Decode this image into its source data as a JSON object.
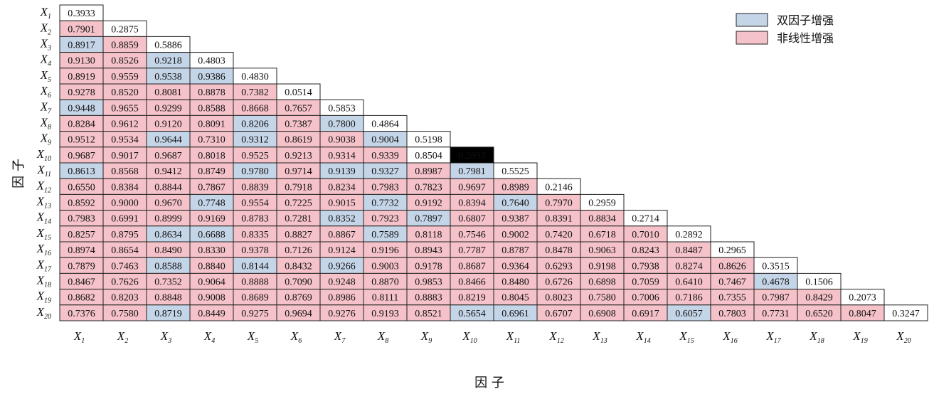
{
  "chart_data": {
    "type": "heatmap",
    "factors": [
      "X_1",
      "X_2",
      "X_3",
      "X_4",
      "X_5",
      "X_6",
      "X_7",
      "X_8",
      "X_9",
      "X_10",
      "X_11",
      "X_12",
      "X_13",
      "X_14",
      "X_15",
      "X_16",
      "X_17",
      "X_18",
      "X_19",
      "X_20"
    ],
    "xlabel": "因 子",
    "ylabel": "因 子",
    "legend": [
      {
        "key": "B",
        "label": "双因子增强",
        "color": "#c5d5e8"
      },
      {
        "key": "N",
        "label": "非线性增强",
        "color": "#f4c2c8"
      }
    ],
    "diagonal_color": "#ffffff",
    "values": [
      [
        "0.3933"
      ],
      [
        "0.7901",
        "0.2875"
      ],
      [
        "0.8917",
        "0.8859",
        "0.5886"
      ],
      [
        "0.9130",
        "0.8526",
        "0.9218",
        "0.4803"
      ],
      [
        "0.8919",
        "0.9559",
        "0.9538",
        "0.9386",
        "0.4830"
      ],
      [
        "0.9278",
        "0.8520",
        "0.8081",
        "0.8878",
        "0.7382",
        "0.0514"
      ],
      [
        "0.9448",
        "0.9655",
        "0.9299",
        "0.8588",
        "0.8668",
        "0.7657",
        "0.5853"
      ],
      [
        "0.8284",
        "0.9612",
        "0.9120",
        "0.8091",
        "0.8206",
        "0.7387",
        "0.7800",
        "0.4864"
      ],
      [
        "0.9512",
        "0.9534",
        "0.9644",
        "0.7310",
        "0.9312",
        "0.8619",
        "0.9038",
        "0.9004",
        "0.5198"
      ],
      [
        "0.9687",
        "0.9017",
        "0.9687",
        "0.8018",
        "0.9525",
        "0.9213",
        "0.9314",
        "0.9339",
        "0.8504",
        "0.2893"
      ],
      [
        "0.8613",
        "0.8568",
        "0.9412",
        "0.8749",
        "0.9780",
        "0.9714",
        "0.9139",
        "0.9327",
        "0.8987",
        "0.7981",
        "0.5525"
      ],
      [
        "0.6550",
        "0.8384",
        "0.8844",
        "0.7867",
        "0.8839",
        "0.7918",
        "0.8234",
        "0.7983",
        "0.7823",
        "0.9697",
        "0.8989",
        "0.2146"
      ],
      [
        "0.8592",
        "0.9000",
        "0.9670",
        "0.7748",
        "0.9554",
        "0.7225",
        "0.9015",
        "0.7732",
        "0.9192",
        "0.8394",
        "0.7640",
        "0.7970",
        "0.2959"
      ],
      [
        "0.7983",
        "0.6991",
        "0.8999",
        "0.9169",
        "0.8783",
        "0.7281",
        "0.8352",
        "0.7923",
        "0.7897",
        "0.6807",
        "0.9387",
        "0.8391",
        "0.8834",
        "0.2714"
      ],
      [
        "0.8257",
        "0.8795",
        "0.8634",
        "0.6688",
        "0.8335",
        "0.8827",
        "0.8867",
        "0.7589",
        "0.8118",
        "0.7546",
        "0.9002",
        "0.7420",
        "0.6718",
        "0.7010",
        "0.2892"
      ],
      [
        "0.8974",
        "0.8654",
        "0.8490",
        "0.8330",
        "0.9378",
        "0.7126",
        "0.9124",
        "0.9196",
        "0.8943",
        "0.7787",
        "0.8787",
        "0.8478",
        "0.9063",
        "0.8243",
        "0.8487",
        "0.2965"
      ],
      [
        "0.7879",
        "0.7463",
        "0.8588",
        "0.8840",
        "0.8144",
        "0.8432",
        "0.9266",
        "0.9003",
        "0.9178",
        "0.8687",
        "0.9364",
        "0.6293",
        "0.9198",
        "0.7938",
        "0.8274",
        "0.8626",
        "0.3515"
      ],
      [
        "0.8467",
        "0.7626",
        "0.7352",
        "0.9064",
        "0.8888",
        "0.7090",
        "0.9248",
        "0.8870",
        "0.9853",
        "0.8466",
        "0.8480",
        "0.6726",
        "0.6898",
        "0.7059",
        "0.6410",
        "0.7467",
        "0.4678",
        "0.1506"
      ],
      [
        "0.8682",
        "0.8203",
        "0.8848",
        "0.9008",
        "0.8689",
        "0.8769",
        "0.8986",
        "0.8111",
        "0.8883",
        "0.8219",
        "0.8045",
        "0.8023",
        "0.7580",
        "0.7006",
        "0.7186",
        "0.7355",
        "0.7987",
        "0.8429",
        "0.2073"
      ],
      [
        "0.7376",
        "0.7580",
        "0.8719",
        "0.8449",
        "0.9275",
        "0.9694",
        "0.9276",
        "0.9193",
        "0.8521",
        "0.5654",
        "0.6961",
        "0.6707",
        "0.6908",
        "0.6917",
        "0.6057",
        "0.7803",
        "0.7731",
        "0.6520",
        "0.8047",
        "0.3247"
      ]
    ],
    "types": [
      "D",
      "ND",
      "BND",
      "NNBD",
      "NNBBD",
      "NNNNND",
      "BNNNNND",
      "NNNNBNBD",
      "NNBNBNNBD",
      "NNNNNNNND",
      "BNNNBNBBNBD",
      "NNNNNNNNNNND",
      "NNNBNNNBNNBND",
      "NNNNNNBNBNNNND",
      "NNBBNNNBNNNNNND",
      "NNNNNNNNNNNNNNND",
      "NNBNBNBNNNNNNNNND",
      "NNNNNNNNNNNNNNNNBD",
      "NNNNNNNNNNNNNNNNNND",
      "NNBNNNNNNBBNNNBNNNND"
    ]
  }
}
